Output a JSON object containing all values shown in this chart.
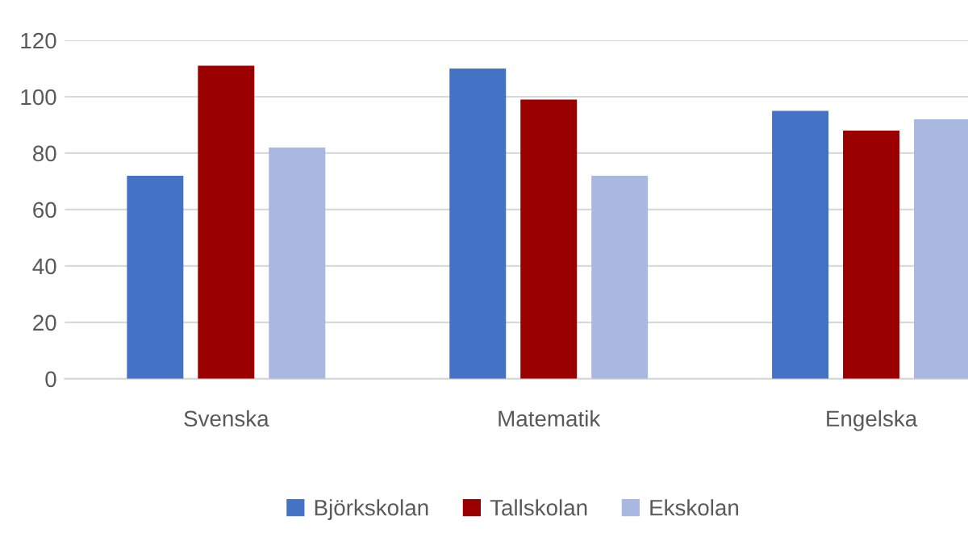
{
  "chart_data": {
    "type": "bar",
    "categories": [
      "Svenska",
      "Matematik",
      "Engelska"
    ],
    "series": [
      {
        "name": "Björkskolan",
        "color": "#4472c4",
        "values": [
          72,
          110,
          95
        ]
      },
      {
        "name": "Tallskolan",
        "color": "#9b0000",
        "values": [
          111,
          99,
          88
        ]
      },
      {
        "name": "Ekskolan",
        "color": "#a9b8e0",
        "values": [
          82,
          72,
          92
        ]
      }
    ],
    "ylim": [
      0,
      120
    ],
    "yticks": [
      0,
      20,
      40,
      60,
      80,
      100,
      120
    ],
    "grid": "y",
    "legend": "bottom"
  }
}
